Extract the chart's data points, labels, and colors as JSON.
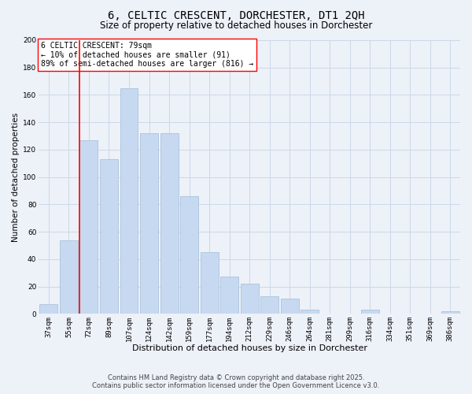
{
  "title": "6, CELTIC CRESCENT, DORCHESTER, DT1 2QH",
  "subtitle": "Size of property relative to detached houses in Dorchester",
  "xlabel": "Distribution of detached houses by size in Dorchester",
  "ylabel": "Number of detached properties",
  "bar_labels": [
    "37sqm",
    "55sqm",
    "72sqm",
    "89sqm",
    "107sqm",
    "124sqm",
    "142sqm",
    "159sqm",
    "177sqm",
    "194sqm",
    "212sqm",
    "229sqm",
    "246sqm",
    "264sqm",
    "281sqm",
    "299sqm",
    "316sqm",
    "334sqm",
    "351sqm",
    "369sqm",
    "386sqm"
  ],
  "bar_heights": [
    7,
    54,
    127,
    113,
    165,
    132,
    132,
    86,
    45,
    27,
    22,
    13,
    11,
    3,
    0,
    0,
    3,
    0,
    0,
    0,
    2
  ],
  "bar_color": "#c7d9f0",
  "bar_edge_color": "#a0bcd8",
  "vline_color": "#ff0000",
  "vline_bar_index": 2,
  "ylim": [
    0,
    200
  ],
  "yticks": [
    0,
    20,
    40,
    60,
    80,
    100,
    120,
    140,
    160,
    180,
    200
  ],
  "annotation_line1": "6 CELTIC CRESCENT: 79sqm",
  "annotation_line2": "← 10% of detached houses are smaller (91)",
  "annotation_line3": "89% of semi-detached houses are larger (816) →",
  "grid_color": "#ccd8e8",
  "background_color": "#edf1f8",
  "footer_line1": "Contains HM Land Registry data © Crown copyright and database right 2025.",
  "footer_line2": "Contains public sector information licensed under the Open Government Licence v3.0.",
  "title_fontsize": 10,
  "subtitle_fontsize": 8.5,
  "axis_label_fontsize": 7.5,
  "tick_fontsize": 6.5,
  "annotation_fontsize": 7,
  "footer_fontsize": 6
}
